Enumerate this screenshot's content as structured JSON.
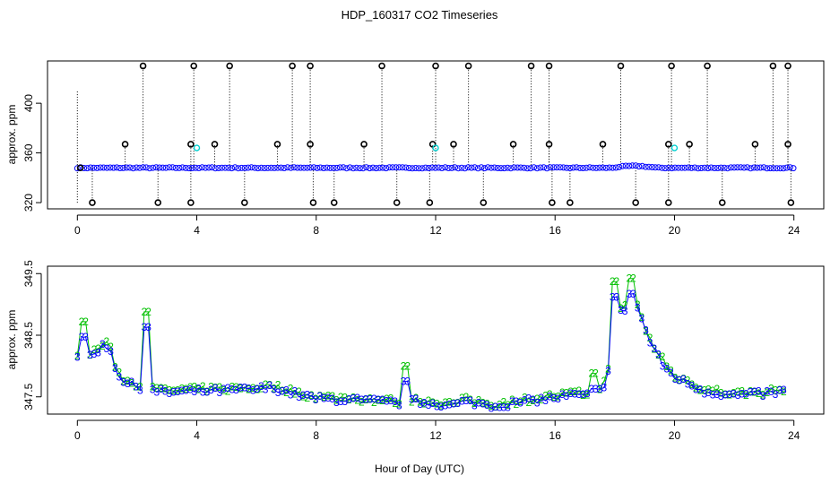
{
  "chart_data": [
    {
      "type": "scatter",
      "title": "HDP_160317  CO2 Timeseries",
      "xlabel": "",
      "ylabel": "approx. ppm",
      "xlim": [
        -1,
        25
      ],
      "ylim": [
        315,
        434
      ],
      "xticks": [
        "0",
        "4",
        "8",
        "12",
        "16",
        "20",
        "24"
      ],
      "yticks": [
        "320",
        "360",
        "400"
      ],
      "baseline_ppm": 348,
      "spike_high": [
        2.2,
        3.9,
        5.1,
        7.2,
        7.8,
        10.2,
        12.0,
        13.1,
        15.2,
        15.8,
        18.2,
        19.9,
        21.1,
        23.3,
        23.8
      ],
      "spike_mid": [
        1.6,
        3.8,
        4.6,
        6.7,
        7.8,
        9.6,
        11.9,
        12.6,
        14.6,
        15.8,
        17.6,
        19.8,
        20.5,
        22.7,
        23.8
      ],
      "spike_low": [
        0.5,
        2.7,
        3.8,
        5.6,
        7.9,
        8.6,
        10.7,
        11.8,
        13.6,
        15.9,
        16.5,
        18.7,
        19.8,
        21.6,
        23.9
      ],
      "cyan_points": [
        [
          4.0,
          364
        ],
        [
          12.0,
          364
        ],
        [
          20.0,
          364
        ]
      ]
    },
    {
      "type": "scatter",
      "title": "",
      "xlabel": "Hour of Day (UTC)",
      "ylabel": "approx. ppm",
      "xlim": [
        -1,
        25
      ],
      "ylim": [
        347.22,
        349.62
      ],
      "xticks": [
        "0",
        "4",
        "8",
        "12",
        "16",
        "20",
        "24"
      ],
      "yticks": [
        "347.5",
        "348.5",
        "349.5"
      ],
      "series": [
        {
          "name": "2",
          "color": "#00c000"
        },
        {
          "name": "3",
          "color": "#0000ff"
        }
      ],
      "profile_key_points": [
        [
          0.0,
          348.2
        ],
        [
          0.3,
          348.15
        ],
        [
          0.6,
          348.25
        ],
        [
          0.9,
          348.38
        ],
        [
          1.1,
          348.3
        ],
        [
          1.3,
          347.95
        ],
        [
          1.6,
          347.75
        ],
        [
          2.0,
          347.7
        ],
        [
          2.5,
          347.62
        ],
        [
          3.0,
          347.6
        ],
        [
          4.0,
          347.62
        ],
        [
          5.0,
          347.63
        ],
        [
          6.0,
          347.65
        ],
        [
          6.5,
          347.68
        ],
        [
          7.5,
          347.55
        ],
        [
          8.0,
          347.5
        ],
        [
          9.0,
          347.48
        ],
        [
          10.0,
          347.45
        ],
        [
          10.9,
          347.42
        ],
        [
          11.3,
          347.45
        ],
        [
          12.0,
          347.42
        ],
        [
          12.5,
          347.38
        ],
        [
          13.0,
          347.45
        ],
        [
          14.0,
          347.38
        ],
        [
          15.0,
          347.45
        ],
        [
          15.8,
          347.5
        ],
        [
          16.5,
          347.55
        ],
        [
          17.2,
          347.55
        ],
        [
          17.6,
          347.65
        ],
        [
          17.9,
          348.2
        ],
        [
          18.2,
          348.9
        ],
        [
          18.6,
          349.05
        ],
        [
          18.8,
          348.95
        ],
        [
          19.1,
          348.5
        ],
        [
          19.6,
          348.05
        ],
        [
          20.0,
          347.85
        ],
        [
          21.0,
          347.62
        ],
        [
          22.0,
          347.55
        ],
        [
          23.0,
          347.58
        ],
        [
          23.8,
          347.62
        ]
      ],
      "green_spikes": [
        [
          0.2,
          348.72
        ],
        [
          2.3,
          348.88
        ],
        [
          11.0,
          348.0
        ],
        [
          17.3,
          347.88
        ],
        [
          18.0,
          349.37
        ],
        [
          18.6,
          349.42
        ],
        [
          19.6,
          348.15
        ]
      ]
    }
  ]
}
